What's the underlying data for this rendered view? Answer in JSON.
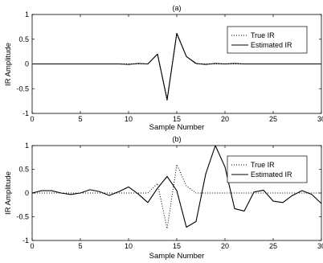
{
  "chart_data": [
    {
      "type": "line",
      "title": "(a)",
      "xlabel": "Sample Number",
      "ylabel": "IR Amplitude",
      "xlim": [
        0,
        30
      ],
      "ylim": [
        -1,
        1
      ],
      "xticks": [
        "0",
        "5",
        "10",
        "15",
        "20",
        "25",
        "30"
      ],
      "yticks": [
        "1",
        "0.5",
        "0",
        "-0.5",
        "-1"
      ],
      "grid": false,
      "legend_position": "top-right",
      "series": [
        {
          "name": "True IR",
          "style": "dotted",
          "x": [
            0,
            1,
            2,
            3,
            4,
            5,
            6,
            7,
            8,
            9,
            10,
            11,
            12,
            13,
            14,
            15,
            16,
            17,
            18,
            19,
            20,
            21,
            22,
            23,
            24,
            25,
            26,
            27,
            28,
            29,
            30
          ],
          "y": [
            0,
            0,
            0,
            0,
            0,
            0,
            0,
            0,
            0,
            0,
            0,
            0,
            0,
            0.2,
            -0.75,
            0.6,
            0.15,
            0,
            0,
            0,
            0,
            0,
            0,
            0,
            0,
            0,
            0,
            0,
            0,
            0,
            0
          ]
        },
        {
          "name": "Estimated IR",
          "style": "solid",
          "x": [
            0,
            1,
            2,
            3,
            4,
            5,
            6,
            7,
            8,
            9,
            10,
            11,
            12,
            13,
            14,
            15,
            16,
            17,
            18,
            19,
            20,
            21,
            22,
            23,
            24,
            25,
            26,
            27,
            28,
            29,
            30
          ],
          "y": [
            0,
            0,
            0,
            0,
            0,
            0,
            0,
            0,
            0,
            0,
            -0.01,
            0.01,
            0,
            0.2,
            -0.72,
            0.62,
            0.15,
            0.01,
            -0.01,
            0.01,
            0,
            0.01,
            0,
            0,
            0,
            0,
            0,
            0,
            0,
            0,
            0
          ]
        }
      ]
    },
    {
      "type": "line",
      "title": "(b)",
      "xlabel": "Sample Number",
      "ylabel": "IR Amplitude",
      "xlim": [
        0,
        30
      ],
      "ylim": [
        -1,
        1
      ],
      "xticks": [
        "0",
        "5",
        "10",
        "15",
        "20",
        "25",
        "30"
      ],
      "yticks": [
        "1",
        "0.5",
        "0",
        "-0.5",
        "-1"
      ],
      "grid": false,
      "legend_position": "top-right",
      "series": [
        {
          "name": "True IR",
          "style": "dotted",
          "x": [
            0,
            1,
            2,
            3,
            4,
            5,
            6,
            7,
            8,
            9,
            10,
            11,
            12,
            13,
            14,
            15,
            16,
            17,
            18,
            19,
            20,
            21,
            22,
            23,
            24,
            25,
            26,
            27,
            28,
            29,
            30
          ],
          "y": [
            0,
            0,
            0,
            0,
            0,
            0,
            0,
            0,
            0,
            0,
            0,
            0,
            0,
            0.2,
            -0.75,
            0.6,
            0.15,
            0,
            0,
            0,
            0,
            0,
            0,
            0,
            0,
            0,
            0,
            0,
            0,
            0,
            0
          ]
        },
        {
          "name": "Estimated IR",
          "style": "solid",
          "x": [
            0,
            1,
            2,
            3,
            4,
            5,
            6,
            7,
            8,
            9,
            10,
            11,
            12,
            13,
            14,
            15,
            16,
            17,
            18,
            19,
            20,
            21,
            22,
            23,
            24,
            25,
            26,
            27,
            28,
            29,
            30
          ],
          "y": [
            0,
            0.05,
            0.05,
            0,
            -0.03,
            0,
            0.07,
            0.03,
            -0.05,
            0.03,
            0.13,
            -0.02,
            -0.2,
            0.1,
            0.35,
            0.05,
            -0.72,
            -0.6,
            0.4,
            1.0,
            0.55,
            -0.33,
            -0.38,
            0.02,
            0.06,
            -0.17,
            -0.2,
            -0.05,
            0.05,
            -0.03,
            -0.22
          ]
        }
      ]
    }
  ]
}
